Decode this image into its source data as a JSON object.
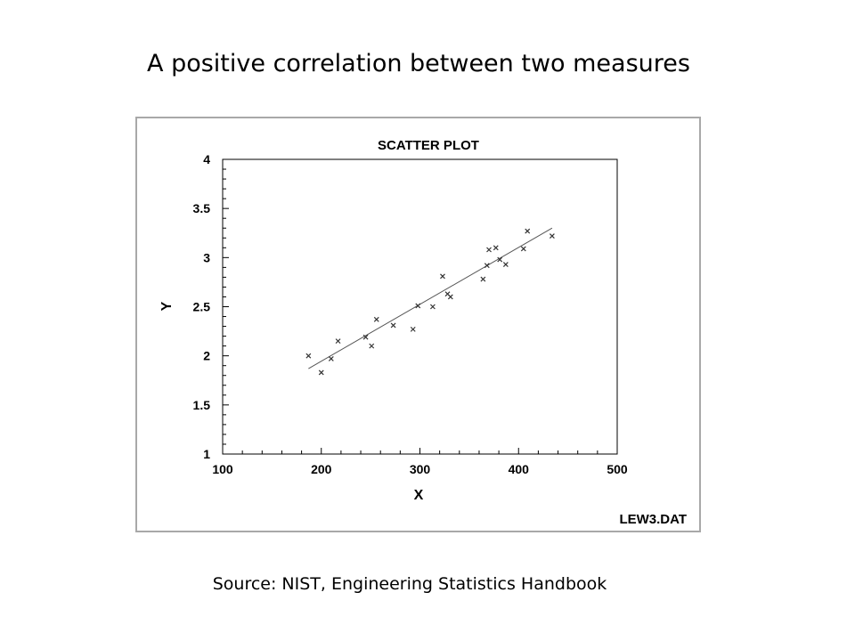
{
  "slide": {
    "title": "A positive correlation between two measures",
    "source": "Source: NIST, Engineering Statistics Handbook"
  },
  "chart_data": {
    "type": "scatter",
    "title": "SCATTER PLOT",
    "xlabel": "X",
    "ylabel": "Y",
    "xlim": [
      100,
      500
    ],
    "ylim": [
      1,
      4
    ],
    "xticks": [
      100,
      200,
      300,
      400,
      500
    ],
    "yticks": [
      1,
      1.5,
      2,
      2.5,
      3,
      3.5,
      4
    ],
    "xtick_labels": [
      "100",
      "200",
      "300",
      "400",
      "500"
    ],
    "ytick_labels": [
      "1",
      "1.5",
      "2",
      "2.5",
      "3",
      "3.5",
      "4"
    ],
    "grid": false,
    "marker": "x",
    "file_label": "LEW3.DAT",
    "series": [
      {
        "x": [
          187,
          200,
          210,
          217,
          245,
          251,
          256,
          273,
          293,
          298,
          313,
          323,
          328,
          331,
          364,
          368,
          370,
          377,
          381,
          387,
          405,
          409,
          434
        ],
        "y": [
          2.0,
          1.83,
          1.97,
          2.15,
          2.19,
          2.1,
          2.37,
          2.31,
          2.27,
          2.51,
          2.5,
          2.81,
          2.63,
          2.6,
          2.78,
          2.92,
          3.08,
          3.1,
          2.98,
          2.93,
          3.09,
          3.27,
          3.22
        ]
      }
    ],
    "fit_line": {
      "x": [
        187,
        434
      ],
      "y": [
        1.87,
        3.3
      ]
    }
  }
}
